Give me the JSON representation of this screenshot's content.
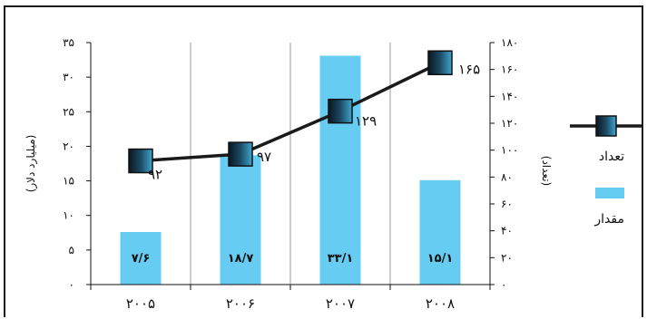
{
  "chart_data": {
    "type": "bar+line",
    "categories": [
      "۲۰۰۵",
      "۲۰۰۶",
      "۲۰۰۷",
      "۲۰۰۸"
    ],
    "bar_series": {
      "name": "مقدار",
      "values": [
        7.6,
        18.7,
        33.1,
        15.1
      ],
      "labels": [
        "۷/۶",
        "۱۸/۷",
        "۳۳/۱",
        "۱۵/۱"
      ],
      "color": "#66ccf2"
    },
    "line_series": {
      "name": "تعداد",
      "values": [
        92,
        97,
        129,
        165
      ],
      "labels": [
        "۹۲",
        "۹۷",
        "۱۲۹",
        "۱۶۵"
      ],
      "color": "#1a1a1a"
    },
    "left_axis": {
      "title": "(میلیارد دلار)",
      "ylim": [
        0,
        35
      ],
      "ticks": [
        0,
        5,
        10,
        15,
        20,
        25,
        30,
        35
      ],
      "tick_labels": [
        "۰",
        "۵",
        "۱۰",
        "۱۵",
        "۲۰",
        "۲۵",
        "۳۰",
        "۳۵"
      ]
    },
    "right_axis": {
      "title": "(تعداد)",
      "ylim": [
        0,
        180
      ],
      "ticks": [
        0,
        20,
        40,
        60,
        80,
        100,
        120,
        140,
        160,
        180
      ],
      "tick_labels": [
        "۰",
        "۲۰",
        "۴۰",
        "۶۰",
        "۸۰",
        "۱۰۰",
        "۱۲۰",
        "۱۴۰",
        "۱۶۰",
        "۱۸۰"
      ]
    },
    "grid": "vertical",
    "legend_position": "right"
  }
}
